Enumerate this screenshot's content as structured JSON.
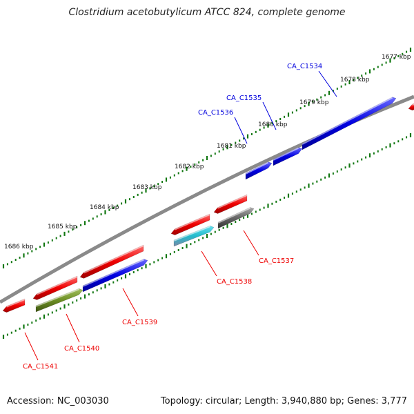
{
  "title": "Clostridium acetobutylicum ATCC 824, complete genome",
  "footer": {
    "accession": "Accession: NC_003030",
    "summary": "Topology: circular; Length: 3,940,880 bp; Genes: 3,777"
  },
  "colors": {
    "forward_gene": "#0000dd",
    "reverse_gene": "#ee0000",
    "backbone": "#888888",
    "ticks": "#117711",
    "olive_gene": "#6b8e23",
    "gray_gene": "#666666",
    "cyan_gene": "#22bbcc"
  },
  "ruler_labels": [
    "1677 kbp",
    "1678 kbp",
    "1679 kbp",
    "1680 kbp",
    "1681 kbp",
    "1682 kbp",
    "1683 kbp",
    "1684 kbp",
    "1685 kbp",
    "1686 kbp"
  ],
  "genes_forward": [
    {
      "label": "CA_C1534"
    },
    {
      "label": "CA_C1535"
    },
    {
      "label": "CA_C1536"
    }
  ],
  "genes_reverse": [
    {
      "label": "CA_C1537"
    },
    {
      "label": "CA_C1538"
    },
    {
      "label": "CA_C1539"
    },
    {
      "label": "CA_C1540"
    },
    {
      "label": "CA_C1541"
    }
  ]
}
